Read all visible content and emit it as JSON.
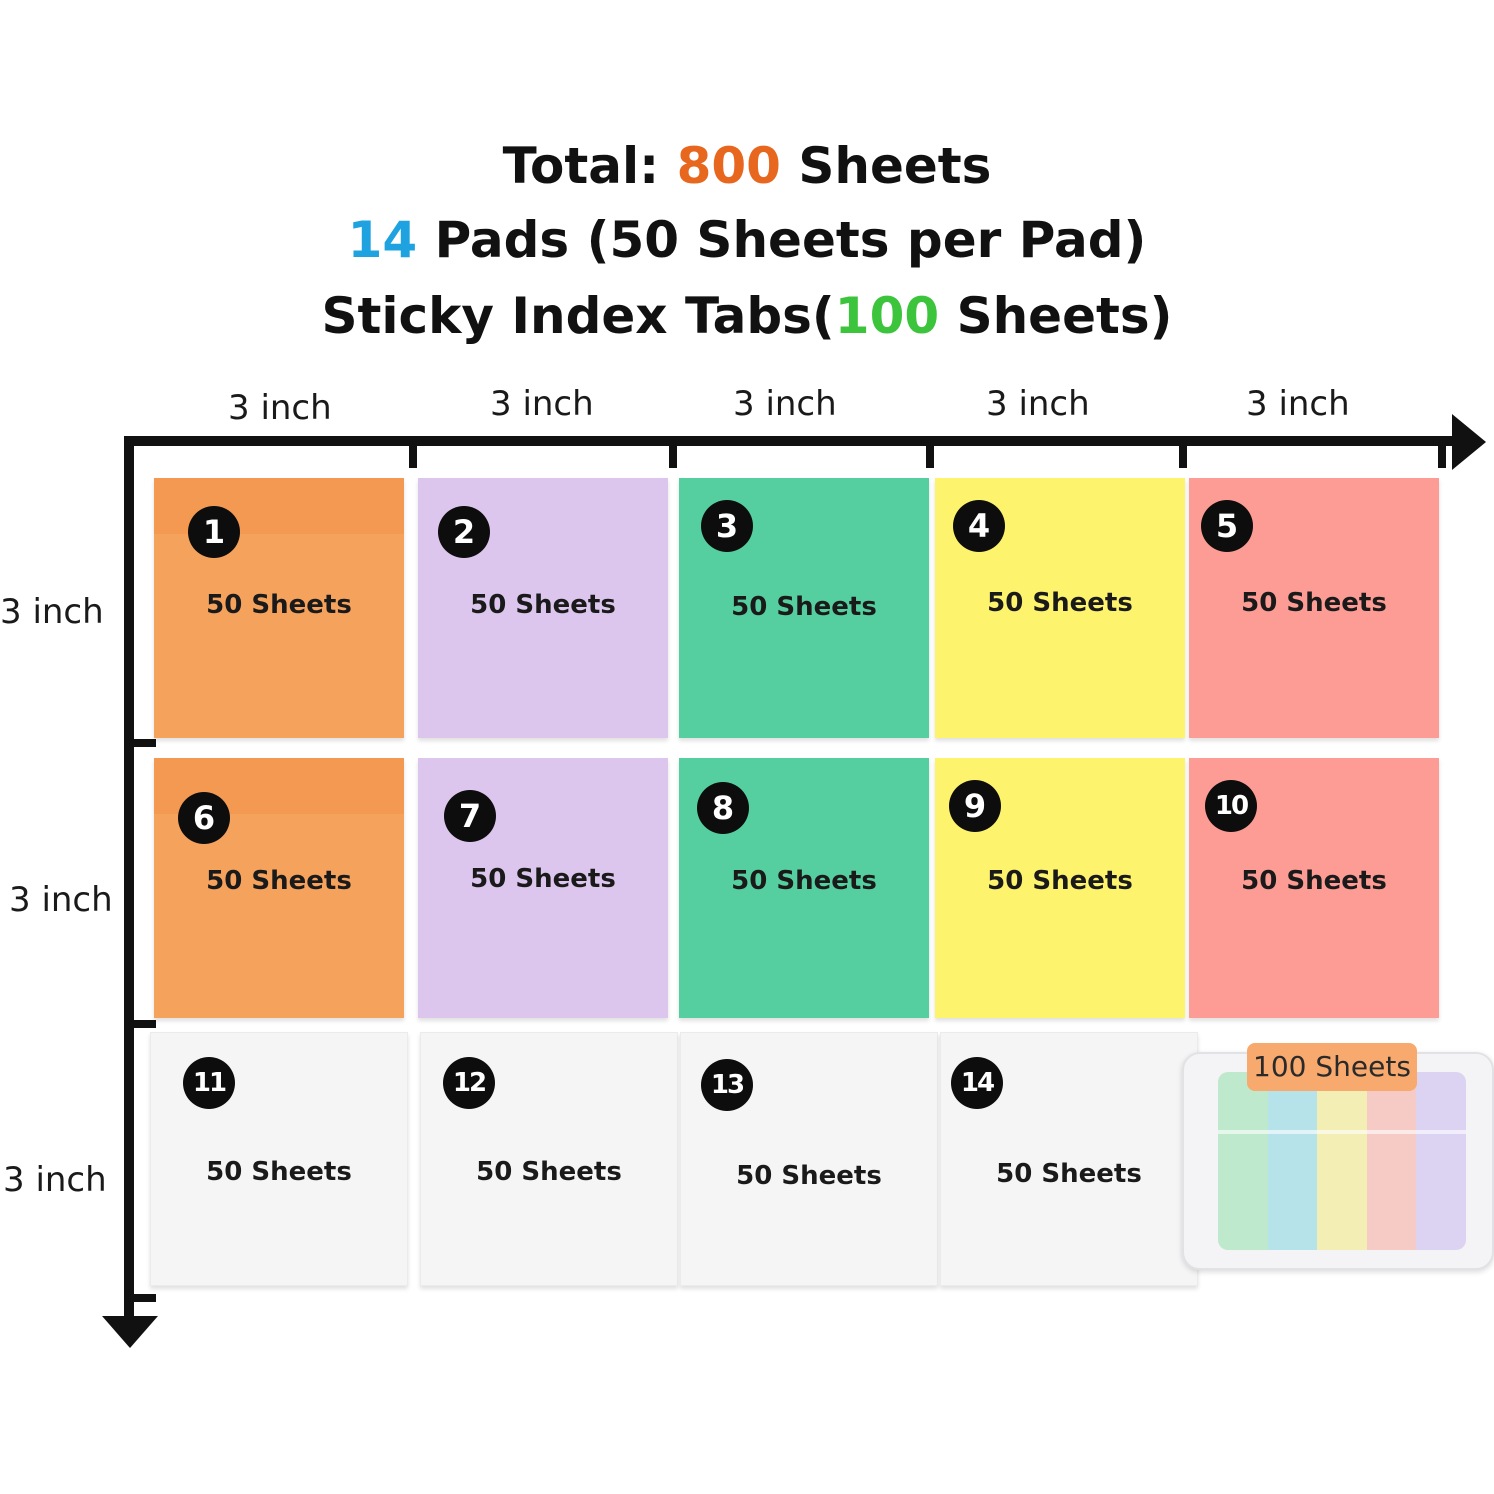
{
  "header": {
    "line1": {
      "prefix": "Total: ",
      "highlight": "800",
      "suffix": " Sheets"
    },
    "line2": {
      "highlight": "14",
      "suffix": " Pads (50 Sheets per Pad)"
    },
    "line3": {
      "prefix": "Sticky Index Tabs(",
      "highlight": "100",
      "suffix": " Sheets)"
    }
  },
  "colors": {
    "total_highlight": "#e8671f",
    "pads_highlight": "#1fa3e0",
    "tabs_highlight": "#3cc43c",
    "orange": "#f5a25d",
    "purple": "#dcc6ee",
    "green": "#55cfa0",
    "yellow": "#fdf36c",
    "pink": "#fc9c94",
    "clear": "#f5f5f5"
  },
  "dimensions": {
    "columns": [
      "3 inch",
      "3 inch",
      "3 inch",
      "3 inch",
      "3 inch"
    ],
    "rows": [
      "3 inch",
      "3 inch",
      "3 inch"
    ]
  },
  "pads": [
    {
      "number": "1",
      "label": "50 Sheets",
      "color": "orange"
    },
    {
      "number": "2",
      "label": "50 Sheets",
      "color": "purple"
    },
    {
      "number": "3",
      "label": "50 Sheets",
      "color": "green"
    },
    {
      "number": "4",
      "label": "50 Sheets",
      "color": "yellow"
    },
    {
      "number": "5",
      "label": "50 Sheets",
      "color": "pink"
    },
    {
      "number": "6",
      "label": "50 Sheets",
      "color": "orange"
    },
    {
      "number": "7",
      "label": "50 Sheets",
      "color": "purple"
    },
    {
      "number": "8",
      "label": "50 Sheets",
      "color": "green"
    },
    {
      "number": "9",
      "label": "50 Sheets",
      "color": "yellow"
    },
    {
      "number": "10",
      "label": "50 Sheets",
      "color": "pink"
    },
    {
      "number": "11",
      "label": "50 Sheets",
      "color": "clear"
    },
    {
      "number": "12",
      "label": "50 Sheets",
      "color": "clear"
    },
    {
      "number": "13",
      "label": "50 Sheets",
      "color": "clear"
    },
    {
      "number": "14",
      "label": "50 Sheets",
      "color": "clear"
    }
  ],
  "index_tabs": {
    "label": "100 Sheets",
    "strip_colors": [
      "#bfe9cd",
      "#b6e3ea",
      "#f3eeb4",
      "#f6cbc6",
      "#dcd2f2"
    ]
  }
}
